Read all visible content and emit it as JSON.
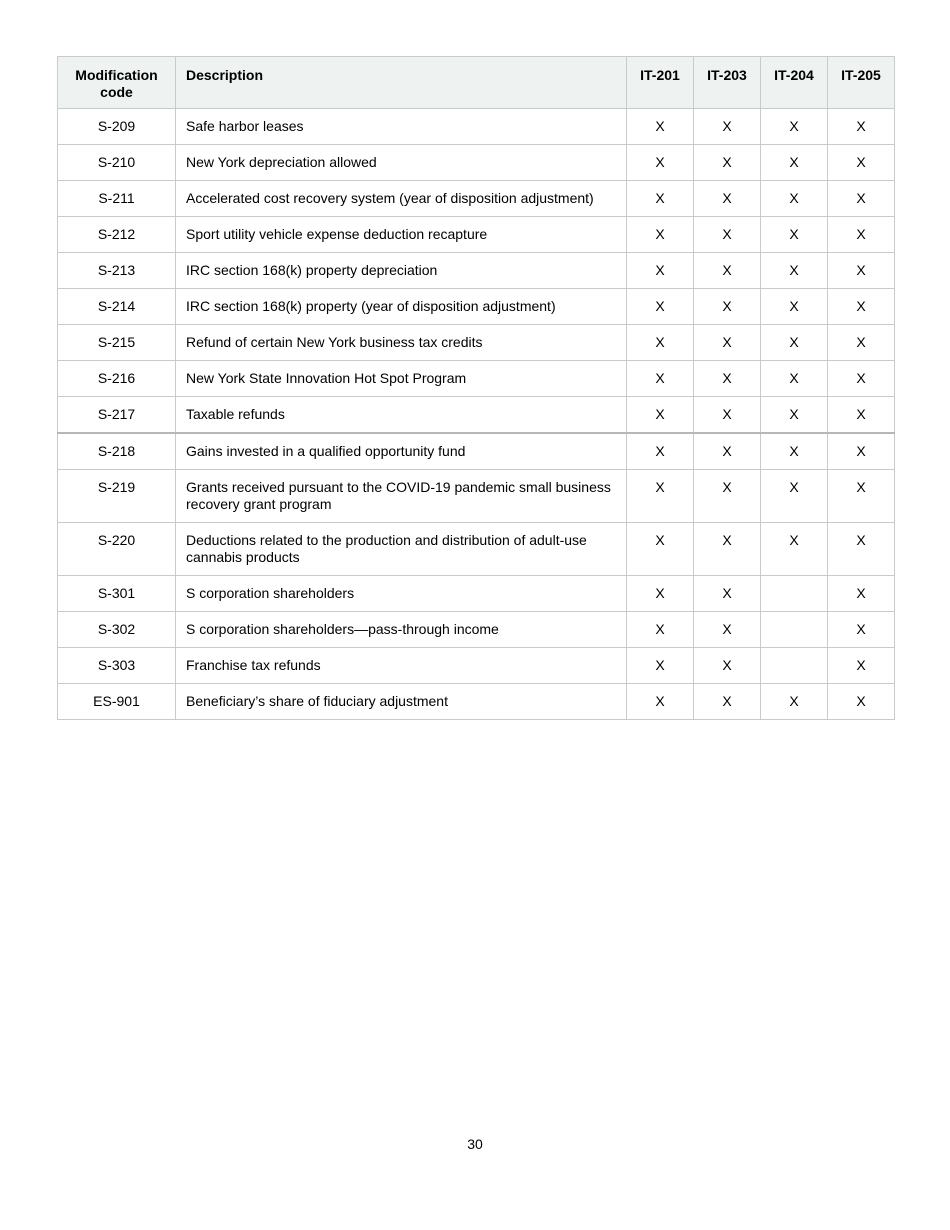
{
  "document": {
    "page_number": "30"
  },
  "table": {
    "headers": {
      "code": "Modification code",
      "description": "Description",
      "it201": "IT-201",
      "it203": "IT-203",
      "it204": "IT-204",
      "it205": "IT-205"
    },
    "rows": [
      {
        "code": "S-209",
        "description": "Safe harbor leases",
        "marks": [
          "X",
          "X",
          "X",
          "X"
        ]
      },
      {
        "code": "S-210",
        "description": "New York depreciation allowed",
        "marks": [
          "X",
          "X",
          "X",
          "X"
        ]
      },
      {
        "code": "S-211",
        "description": "Accelerated cost recovery system (year of disposition adjustment)",
        "marks": [
          "X",
          "X",
          "X",
          "X"
        ]
      },
      {
        "code": "S-212",
        "description": "Sport utility vehicle expense deduction recapture",
        "marks": [
          "X",
          "X",
          "X",
          "X"
        ]
      },
      {
        "code": "S-213",
        "description": "IRC section 168(k) property depreciation",
        "marks": [
          "X",
          "X",
          "X",
          "X"
        ]
      },
      {
        "code": "S-214",
        "description": "IRC section 168(k) property (year of disposition adjustment)",
        "marks": [
          "X",
          "X",
          "X",
          "X"
        ]
      },
      {
        "code": "S-215",
        "description": "Refund of certain New York business tax credits",
        "marks": [
          "X",
          "X",
          "X",
          "X"
        ]
      },
      {
        "code": "S-216",
        "description": "New York State Innovation Hot Spot Program",
        "marks": [
          "X",
          "X",
          "X",
          "X"
        ]
      },
      {
        "code": "S-217",
        "description": "Taxable refunds",
        "marks": [
          "X",
          "X",
          "X",
          "X"
        ]
      },
      {
        "code": "S-218",
        "description": "Gains invested in a qualified opportunity fund",
        "marks": [
          "X",
          "X",
          "X",
          "X"
        ],
        "thick_top_border": true
      },
      {
        "code": "S-219",
        "description": "Grants received pursuant to the COVID-19 pandemic small business recovery grant program",
        "marks": [
          "X",
          "X",
          "X",
          "X"
        ]
      },
      {
        "code": "S-220",
        "description": "Deductions related to the production and distribution of adult-use cannabis products",
        "marks": [
          "X",
          "X",
          "X",
          "X"
        ]
      },
      {
        "code": "S-301",
        "description": "S corporation shareholders",
        "marks": [
          "X",
          "X",
          "",
          "X"
        ]
      },
      {
        "code": "S-302",
        "description": "S corporation shareholders—pass-through income",
        "marks": [
          "X",
          "X",
          "",
          "X"
        ]
      },
      {
        "code": "S-303",
        "description": "Franchise tax refunds",
        "marks": [
          "X",
          "X",
          "",
          "X"
        ]
      },
      {
        "code": "ES-901",
        "description": "Beneficiary’s share of fiduciary adjustment",
        "marks": [
          "X",
          "X",
          "X",
          "X"
        ]
      }
    ]
  },
  "colors": {
    "header_background": "#eef2f1",
    "border": "#c7cbca",
    "text": "#000000",
    "page_background": "#ffffff"
  }
}
